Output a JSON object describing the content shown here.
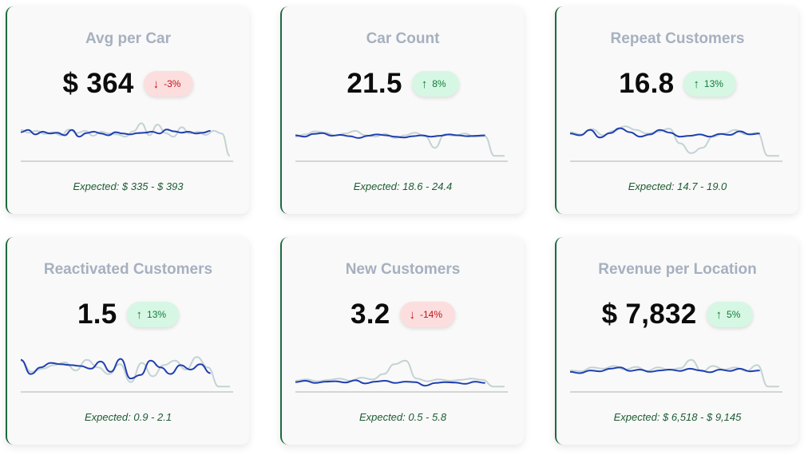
{
  "cards": [
    {
      "title": "Avg per Car",
      "value": "$ 364",
      "change": "-3%",
      "direction": "down",
      "expected": "Expected: $ 335 - $ 393",
      "sparkline_current": [
        0.65,
        0.7,
        0.6,
        0.66,
        0.62,
        0.64,
        0.58,
        0.7,
        0.55,
        0.63,
        0.66,
        0.62,
        0.58,
        0.65,
        0.62,
        0.6,
        0.63,
        0.64,
        0.66,
        0.62,
        0.71,
        0.67,
        0.64,
        0.66,
        0.62,
        0.64,
        0.68
      ],
      "sparkline_prior": [
        0.7,
        0.64,
        0.68,
        0.61,
        0.65,
        0.58,
        0.71,
        0.63,
        0.68,
        0.57,
        0.66,
        0.62,
        0.6,
        0.55,
        0.67,
        0.85,
        0.58,
        0.82,
        0.63,
        0.55,
        0.76,
        0.62,
        0.66,
        0.59,
        0.68,
        0.62,
        0.12
      ]
    },
    {
      "title": "Car Count",
      "value": "21.5",
      "change": "8%",
      "direction": "up",
      "expected": "Expected: 18.6 - 24.4",
      "sparkline_current": [
        0.58,
        0.55,
        0.61,
        0.63,
        0.57,
        0.59,
        0.56,
        0.52,
        0.57,
        0.6,
        0.58,
        0.55,
        0.53,
        0.56,
        0.58,
        0.55,
        0.57,
        0.6,
        0.58,
        0.56,
        0.57,
        0.58
      ],
      "sparkline_prior": [
        0.55,
        0.6,
        0.67,
        0.64,
        0.58,
        0.62,
        0.68,
        0.58,
        0.55,
        0.61,
        0.52,
        0.58,
        0.64,
        0.56,
        0.3,
        0.6,
        0.57,
        0.62,
        0.55,
        0.56,
        0.12,
        0.12
      ]
    },
    {
      "title": "Repeat Customers",
      "value": "16.8",
      "change": "13%",
      "direction": "up",
      "expected": "Expected: 14.7 - 19.0",
      "sparkline_current": [
        0.62,
        0.58,
        0.7,
        0.53,
        0.63,
        0.74,
        0.65,
        0.55,
        0.6,
        0.7,
        0.64,
        0.55,
        0.57,
        0.6,
        0.55,
        0.61,
        0.59,
        0.67,
        0.6,
        0.62
      ],
      "sparkline_prior": [
        0.65,
        0.6,
        0.72,
        0.58,
        0.68,
        0.78,
        0.7,
        0.62,
        0.66,
        0.73,
        0.4,
        0.18,
        0.3,
        0.55,
        0.62,
        0.7,
        0.6,
        0.64,
        0.12,
        0.12
      ]
    },
    {
      "title": "Reactivated Customers",
      "value": "1.5",
      "change": "13%",
      "direction": "up",
      "expected": "Expected: 0.9 - 2.1",
      "sparkline_current": [
        0.72,
        0.4,
        0.55,
        0.65,
        0.62,
        0.6,
        0.58,
        0.52,
        0.68,
        0.45,
        0.74,
        0.3,
        0.38,
        0.7,
        0.55,
        0.4,
        0.6,
        0.5,
        0.62,
        0.42
      ],
      "sparkline_prior": [
        0.7,
        0.45,
        0.52,
        0.6,
        0.66,
        0.48,
        0.72,
        0.55,
        0.4,
        0.62,
        0.22,
        0.65,
        0.35,
        0.6,
        0.7,
        0.5,
        0.78,
        0.55,
        0.12,
        0.12
      ]
    },
    {
      "title": "New Customers",
      "value": "3.2",
      "change": "-14%",
      "direction": "down",
      "expected": "Expected: 0.5 - 5.8",
      "sparkline_current": [
        0.22,
        0.25,
        0.2,
        0.23,
        0.24,
        0.21,
        0.26,
        0.19,
        0.23,
        0.25,
        0.2,
        0.23,
        0.22,
        0.14,
        0.2,
        0.22,
        0.21,
        0.18,
        0.23,
        0.2
      ],
      "sparkline_prior": [
        0.25,
        0.28,
        0.24,
        0.27,
        0.3,
        0.25,
        0.32,
        0.28,
        0.4,
        0.62,
        0.7,
        0.3,
        0.24,
        0.28,
        0.25,
        0.27,
        0.3,
        0.27,
        0.12,
        0.12
      ]
    },
    {
      "title": "Revenue per Location",
      "value": "$ 7,832",
      "change": "5%",
      "direction": "up",
      "expected": "Expected: $ 6,518 - $ 9,145",
      "sparkline_current": [
        0.45,
        0.42,
        0.48,
        0.46,
        0.52,
        0.55,
        0.47,
        0.5,
        0.45,
        0.48,
        0.5,
        0.47,
        0.52,
        0.48,
        0.44,
        0.5,
        0.47,
        0.52,
        0.46,
        0.48
      ],
      "sparkline_prior": [
        0.48,
        0.46,
        0.55,
        0.52,
        0.58,
        0.5,
        0.56,
        0.47,
        0.55,
        0.49,
        0.53,
        0.72,
        0.46,
        0.58,
        0.5,
        0.55,
        0.47,
        0.6,
        0.12,
        0.12
      ]
    }
  ],
  "colors": {
    "current_line": "#1f3fb0",
    "prior_line": "#c4d2d4",
    "baseline": "#c9c9c9",
    "accent_border": "#1c6b3e"
  },
  "icons": {
    "up": "arrow-up-icon",
    "down": "arrow-down-icon"
  }
}
